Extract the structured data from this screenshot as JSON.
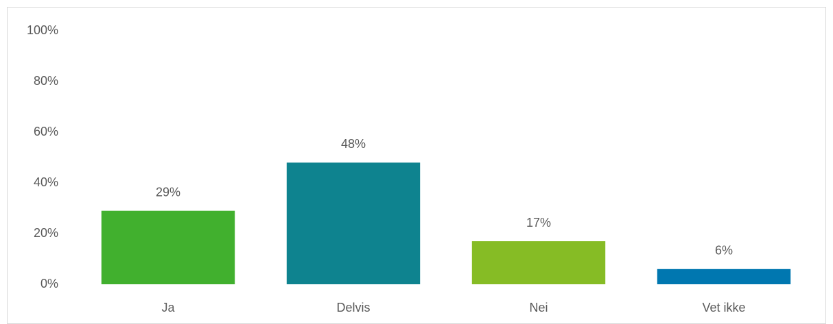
{
  "chart_data": {
    "type": "bar",
    "categories": [
      "Ja",
      "Delvis",
      "Nei",
      "Vet ikke"
    ],
    "values": [
      29,
      48,
      17,
      6
    ],
    "value_labels": [
      "29%",
      "48%",
      "17%",
      "6%"
    ],
    "colors": [
      "#41b02e",
      "#0e838f",
      "#86bc25",
      "#0077b0"
    ],
    "ylim": [
      0,
      100
    ],
    "yticks": [
      {
        "value": 0,
        "label": "0%"
      },
      {
        "value": 20,
        "label": "20%"
      },
      {
        "value": 40,
        "label": "40%"
      },
      {
        "value": 60,
        "label": "60%"
      },
      {
        "value": 80,
        "label": "80%"
      },
      {
        "value": 100,
        "label": "100%"
      }
    ],
    "grid": false
  }
}
